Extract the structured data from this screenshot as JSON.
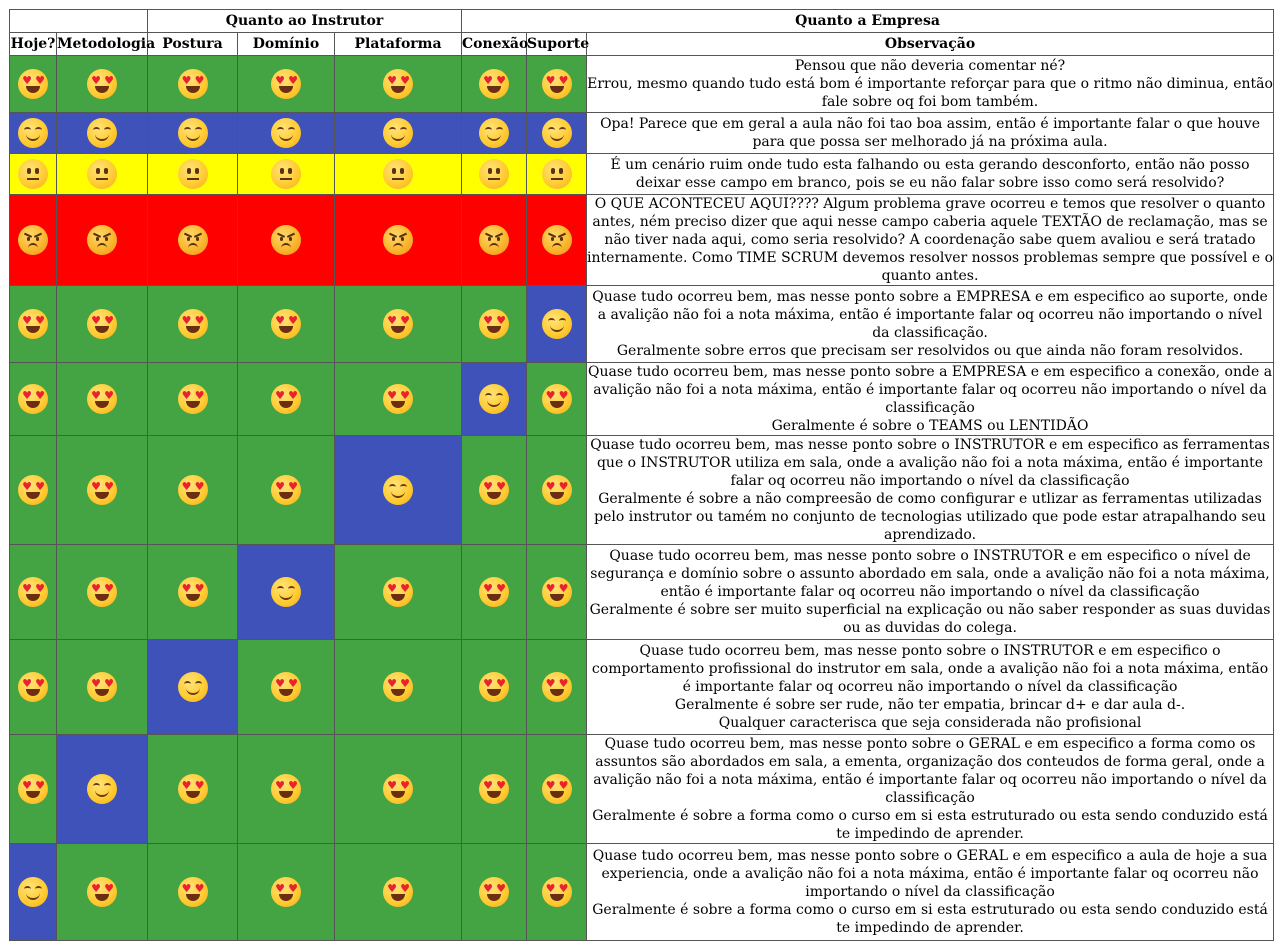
{
  "header": {
    "group_instrutor": "Quanto ao Instrutor",
    "group_empresa": "Quanto a Empresa",
    "columns": [
      "Hoje?",
      "Metodologia",
      "Postura",
      "Domínio",
      "Plataforma",
      "Conexão",
      "Suporte",
      "Observação"
    ]
  },
  "legend": {
    "love": "heart-eyes",
    "happy": "smiling",
    "neutral": "neutral",
    "angry": "angry"
  },
  "colors": {
    "green": "#44a444",
    "blue": "#3f52b9",
    "yellow": "#ffff00",
    "red": "#ff0000"
  },
  "rows": [
    {
      "cells": [
        [
          "love",
          "green"
        ],
        [
          "love",
          "green"
        ],
        [
          "love",
          "green"
        ],
        [
          "love",
          "green"
        ],
        [
          "love",
          "green"
        ],
        [
          "love",
          "green"
        ],
        [
          "love",
          "green"
        ]
      ],
      "obs": [
        "Pensou que não deveria comentar né?",
        "Errou, mesmo quando tudo está bom é importante reforçar para que o ritmo não diminua, então fale sobre oq foi bom também."
      ]
    },
    {
      "cells": [
        [
          "happy",
          "blue"
        ],
        [
          "happy",
          "blue"
        ],
        [
          "happy",
          "blue"
        ],
        [
          "happy",
          "blue"
        ],
        [
          "happy",
          "blue"
        ],
        [
          "happy",
          "blue"
        ],
        [
          "happy",
          "blue"
        ]
      ],
      "obs": [
        "Opa! Parece que em geral a aula não foi tao boa assim, então é importante falar o que houve para que possa ser melhorado já na próxima aula."
      ]
    },
    {
      "cells": [
        [
          "neutral",
          "yellow"
        ],
        [
          "neutral",
          "yellow"
        ],
        [
          "neutral",
          "yellow"
        ],
        [
          "neutral",
          "yellow"
        ],
        [
          "neutral",
          "yellow"
        ],
        [
          "neutral",
          "yellow"
        ],
        [
          "neutral",
          "yellow"
        ]
      ],
      "obs": [
        "É um cenário ruim onde tudo esta falhando ou esta gerando desconforto, então não posso deixar esse campo em branco, pois se eu não falar sobre isso como será resolvido?"
      ]
    },
    {
      "cells": [
        [
          "angry",
          "red"
        ],
        [
          "angry",
          "red"
        ],
        [
          "angry",
          "red"
        ],
        [
          "angry",
          "red"
        ],
        [
          "angry",
          "red"
        ],
        [
          "angry",
          "red"
        ],
        [
          "angry",
          "red"
        ]
      ],
      "obs": [
        "O QUE ACONTECEU AQUI???? Algum problema grave ocorreu e temos que resolver o quanto antes, ném preciso dizer que aqui nesse campo caberia aquele TEXTÃO de reclamação, mas se não tiver nada aqui, como seria resolvido? A coordenação sabe quem avaliou e será tratado internamente. Como TIME SCRUM devemos resolver nossos problemas sempre que possível e o quanto antes."
      ]
    },
    {
      "cells": [
        [
          "love",
          "green"
        ],
        [
          "love",
          "green"
        ],
        [
          "love",
          "green"
        ],
        [
          "love",
          "green"
        ],
        [
          "love",
          "green"
        ],
        [
          "love",
          "green"
        ],
        [
          "happy",
          "blue"
        ]
      ],
      "obs": [
        "Quase tudo ocorreu bem, mas nesse ponto sobre a EMPRESA e em especifico ao suporte, onde a avalição não foi a nota máxima, então é importante falar oq ocorreu não importando o nível da classificação.",
        "Geralmente sobre erros que precisam ser resolvidos ou que ainda não foram resolvidos."
      ]
    },
    {
      "cells": [
        [
          "love",
          "green"
        ],
        [
          "love",
          "green"
        ],
        [
          "love",
          "green"
        ],
        [
          "love",
          "green"
        ],
        [
          "love",
          "green"
        ],
        [
          "happy",
          "blue"
        ],
        [
          "love",
          "green"
        ]
      ],
      "obs": [
        "Quase tudo ocorreu bem, mas nesse ponto sobre a EMPRESA e em especifico a conexão, onde a avalição não foi a nota máxima, então é importante falar oq ocorreu não importando o nível da classificação",
        "Geralmente é sobre o TEAMS ou LENTIDÃO"
      ]
    },
    {
      "cells": [
        [
          "love",
          "green"
        ],
        [
          "love",
          "green"
        ],
        [
          "love",
          "green"
        ],
        [
          "love",
          "green"
        ],
        [
          "happy",
          "blue"
        ],
        [
          "love",
          "green"
        ],
        [
          "love",
          "green"
        ]
      ],
      "obs": [
        "Quase tudo ocorreu bem, mas nesse ponto sobre o INSTRUTOR e em especifico as ferramentas que o INSTRUTOR utiliza em sala, onde a avalição não foi a nota máxima, então é importante falar oq ocorreu não importando o nível da classificação",
        "Geralmente é sobre a não compreesão de como configurar e utlizar as ferramentas utilizadas pelo instrutor ou tamém no conjunto de tecnologias utilizado que pode estar atrapalhando seu aprendizado."
      ]
    },
    {
      "cells": [
        [
          "love",
          "green"
        ],
        [
          "love",
          "green"
        ],
        [
          "love",
          "green"
        ],
        [
          "happy",
          "blue"
        ],
        [
          "love",
          "green"
        ],
        [
          "love",
          "green"
        ],
        [
          "love",
          "green"
        ]
      ],
      "obs": [
        "Quase tudo ocorreu bem, mas nesse ponto sobre o INSTRUTOR e em especifico o nível de segurança e domínio sobre o assunto abordado em sala, onde a avalição não foi a nota máxima, então é importante falar oq ocorreu não importando o nível da classificação",
        "Geralmente é sobre ser muito superficial na explicação ou não saber responder as suas duvidas ou as duvidas do colega."
      ]
    },
    {
      "cells": [
        [
          "love",
          "green"
        ],
        [
          "love",
          "green"
        ],
        [
          "happy",
          "blue"
        ],
        [
          "love",
          "green"
        ],
        [
          "love",
          "green"
        ],
        [
          "love",
          "green"
        ],
        [
          "love",
          "green"
        ]
      ],
      "obs": [
        "Quase tudo ocorreu bem, mas nesse ponto sobre o INSTRUTOR e em especifico o comportamento profissional do instrutor em sala, onde a avalição não foi a nota máxima, então é importante falar oq ocorreu não importando o nível da classificação",
        "Geralmente é sobre ser rude, não ter empatia, brincar d+ e dar aula d-.",
        "Qualquer caracterisca que seja considerada não profisional"
      ]
    },
    {
      "cells": [
        [
          "love",
          "green"
        ],
        [
          "happy",
          "blue"
        ],
        [
          "love",
          "green"
        ],
        [
          "love",
          "green"
        ],
        [
          "love",
          "green"
        ],
        [
          "love",
          "green"
        ],
        [
          "love",
          "green"
        ]
      ],
      "obs": [
        "Quase tudo ocorreu bem, mas nesse ponto sobre o GERAL e em especifico a forma como os assuntos são abordados em sala, a ementa, organização dos conteudos de forma geral, onde a avalição não foi a nota máxima, então é importante falar oq ocorreu não importando o nível da classificação",
        "Geralmente é sobre a forma como o curso em si esta estruturado ou esta sendo conduzido está te impedindo de aprender."
      ]
    },
    {
      "cells": [
        [
          "happy",
          "blue"
        ],
        [
          "love",
          "green"
        ],
        [
          "love",
          "green"
        ],
        [
          "love",
          "green"
        ],
        [
          "love",
          "green"
        ],
        [
          "love",
          "green"
        ],
        [
          "love",
          "green"
        ]
      ],
      "obs": [
        "Quase tudo ocorreu bem, mas nesse ponto sobre o GERAL e em especifico a aula de hoje a sua experiencia, onde a avalição não foi a nota máxima, então é importante falar oq ocorreu não importando o nível da classificação",
        "Geralmente é sobre a forma como o curso em si esta estruturado ou esta sendo conduzido está te impedindo de aprender."
      ]
    }
  ]
}
